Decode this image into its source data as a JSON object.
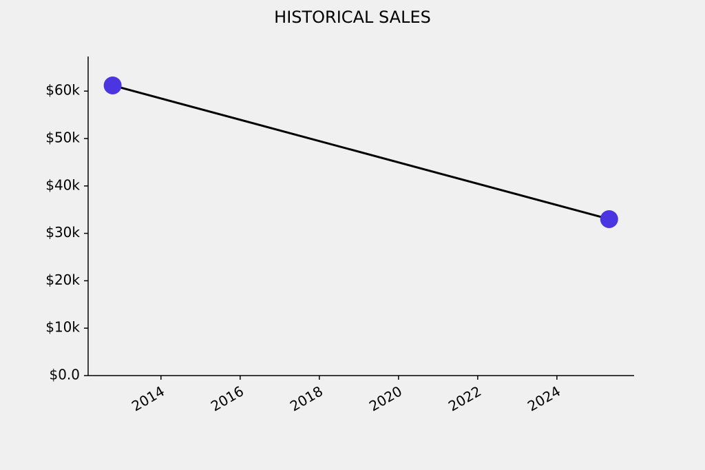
{
  "chart_data": {
    "type": "line",
    "title": "HISTORICAL SALES",
    "x": [
      2012.78,
      2025.32
    ],
    "series": [
      {
        "name": "Sales",
        "color": "#4b35e0",
        "values": [
          61200,
          33000
        ]
      }
    ],
    "xlim": [
      2012.16,
      2025.95
    ],
    "xticks": [
      2014,
      2016,
      2018,
      2020,
      2022,
      2024
    ],
    "ylim": [
      0,
      67300
    ],
    "yticks": [
      {
        "value": 0,
        "label": "$0.0"
      },
      {
        "value": 10000,
        "label": "$10k"
      },
      {
        "value": 20000,
        "label": "$20k"
      },
      {
        "value": 30000,
        "label": "$30k"
      },
      {
        "value": 40000,
        "label": "$40k"
      },
      {
        "value": 50000,
        "label": "$50k"
      },
      {
        "value": 60000,
        "label": "$60k"
      }
    ],
    "line_color": "#000000",
    "grid": false
  }
}
